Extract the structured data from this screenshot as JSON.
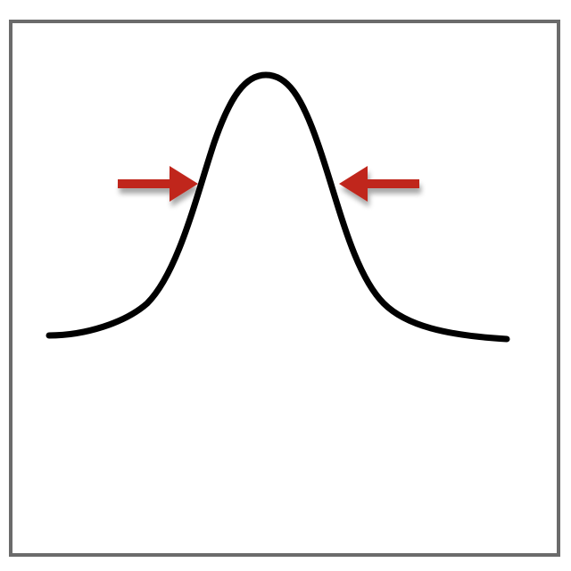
{
  "diagram": {
    "frame": {
      "border_color": "#6b6b6b",
      "background": "#ffffff"
    },
    "curve": {
      "shape": "bell-curve",
      "color": "#000000"
    },
    "arrows": [
      {
        "name": "left-arrow",
        "direction": "right",
        "color": "#c0261c"
      },
      {
        "name": "right-arrow",
        "direction": "left",
        "color": "#c0261c"
      }
    ]
  }
}
